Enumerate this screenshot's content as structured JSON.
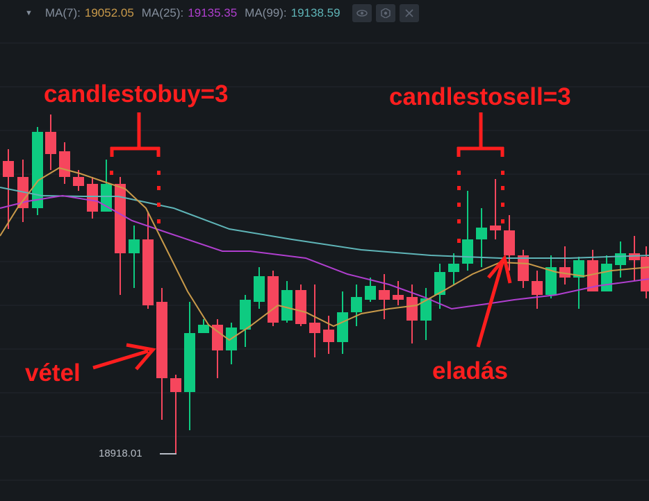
{
  "legend": {
    "items": [
      {
        "label": "MA(7):",
        "value": "19052.05",
        "color": "#c99a4a"
      },
      {
        "label": "MA(25):",
        "value": "19135.35",
        "color": "#b03fcf"
      },
      {
        "label": "MA(99):",
        "value": "19138.59",
        "color": "#5fb5b8"
      }
    ],
    "icons": [
      "eye-icon",
      "gear-icon",
      "close-icon"
    ]
  },
  "low_marker": "18918.01",
  "annotations": {
    "buy_rule": "candlestobuy=3",
    "sell_rule": "candlestosell=3",
    "buy": "vétel",
    "sell": "eladás"
  },
  "colors": {
    "up": "#0ecb81",
    "down": "#f6465d",
    "annotation": "#ff1e1e",
    "background": "#161a1e"
  },
  "chart_data": {
    "type": "candlestick",
    "low": 18918.01,
    "series": [
      {
        "name": "MA(7)",
        "value": 19052.05
      },
      {
        "name": "MA(25)",
        "value": 19135.35
      },
      {
        "name": "MA(99)",
        "value": 19138.59
      }
    ]
  }
}
